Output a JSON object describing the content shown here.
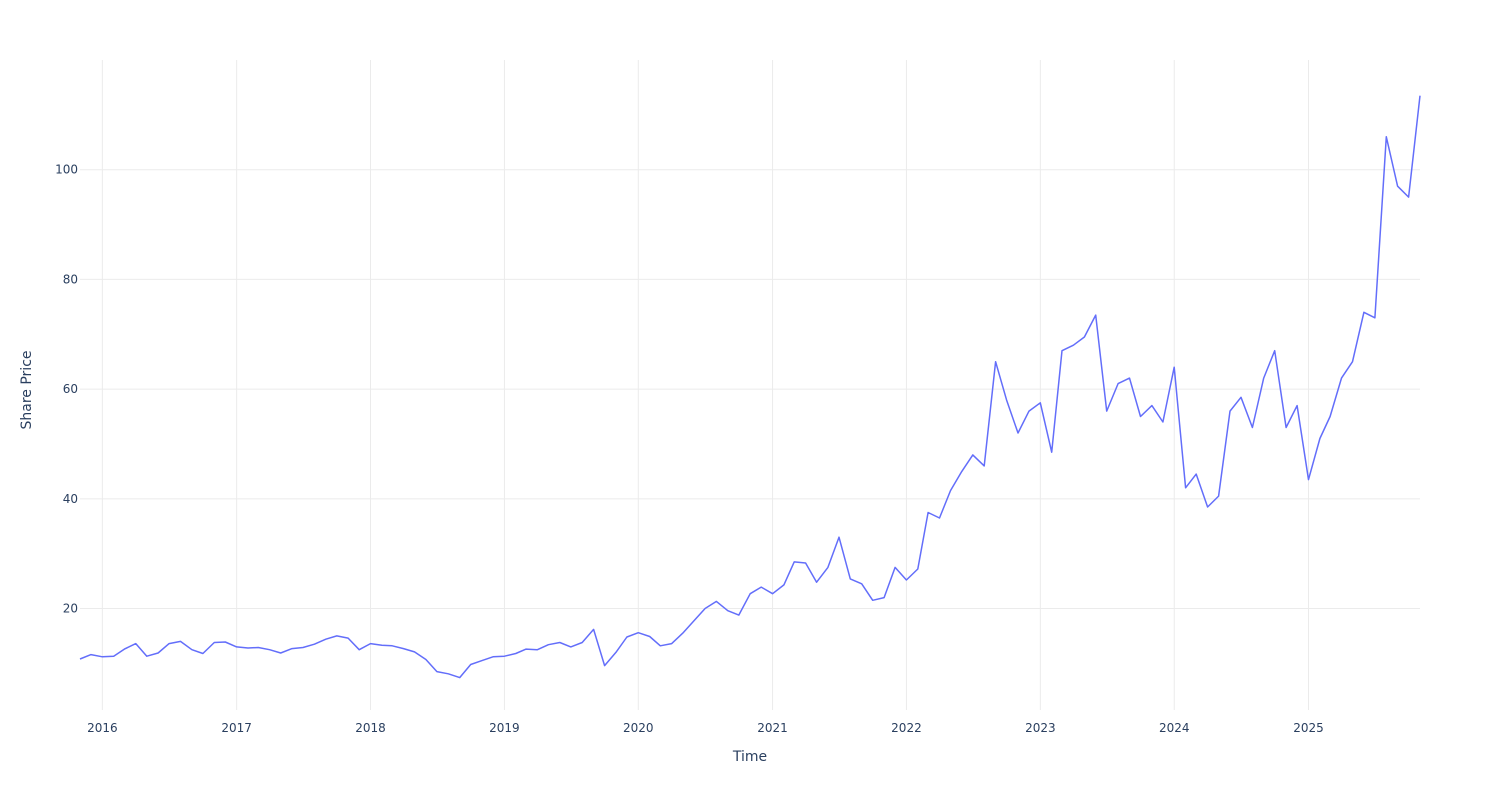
{
  "chart_data": {
    "type": "line",
    "title": "",
    "xlabel": "Time",
    "ylabel": "Share Price",
    "x_tick_labels": [
      "2016",
      "2017",
      "2018",
      "2019",
      "2020",
      "2021",
      "2022",
      "2023",
      "2024",
      "2025"
    ],
    "y_ticks": [
      20,
      40,
      60,
      80,
      100
    ],
    "xlim": [
      "2015-11-01",
      "2025-11-01"
    ],
    "ylim": [
      1.5,
      120
    ],
    "grid": true,
    "legend": "none",
    "series": [
      {
        "color": "#636efa",
        "x": [
          "2015-11-01",
          "2015-12-01",
          "2016-01-01",
          "2016-02-01",
          "2016-03-01",
          "2016-04-01",
          "2016-05-01",
          "2016-06-01",
          "2016-07-01",
          "2016-08-01",
          "2016-09-01",
          "2016-10-01",
          "2016-11-01",
          "2016-12-01",
          "2017-01-01",
          "2017-02-01",
          "2017-03-01",
          "2017-04-01",
          "2017-05-01",
          "2017-06-01",
          "2017-07-01",
          "2017-08-01",
          "2017-09-01",
          "2017-10-01",
          "2017-11-01",
          "2017-12-01",
          "2018-01-01",
          "2018-02-01",
          "2018-03-01",
          "2018-04-01",
          "2018-05-01",
          "2018-06-01",
          "2018-07-01",
          "2018-08-01",
          "2018-09-01",
          "2018-10-01",
          "2018-11-01",
          "2018-12-01",
          "2019-01-01",
          "2019-02-01",
          "2019-03-01",
          "2019-04-01",
          "2019-05-01",
          "2019-06-01",
          "2019-07-01",
          "2019-08-01",
          "2019-09-01",
          "2019-10-01",
          "2019-11-01",
          "2019-12-01",
          "2020-01-01",
          "2020-02-01",
          "2020-03-01",
          "2020-04-01",
          "2020-05-01",
          "2020-06-01",
          "2020-07-01",
          "2020-08-01",
          "2020-09-01",
          "2020-10-01",
          "2020-11-01",
          "2020-12-01",
          "2021-01-01",
          "2021-02-01",
          "2021-03-01",
          "2021-04-01",
          "2021-05-01",
          "2021-06-01",
          "2021-07-01",
          "2021-08-01",
          "2021-09-01",
          "2021-10-01",
          "2021-11-01",
          "2021-12-01",
          "2022-01-01",
          "2022-02-01",
          "2022-03-01",
          "2022-04-01",
          "2022-05-01",
          "2022-06-01",
          "2022-07-01",
          "2022-08-01",
          "2022-09-01",
          "2022-10-01",
          "2022-11-01",
          "2022-12-01",
          "2023-01-01",
          "2023-02-01",
          "2023-03-01",
          "2023-04-01",
          "2023-05-01",
          "2023-06-01",
          "2023-07-01",
          "2023-08-01",
          "2023-09-01",
          "2023-10-01",
          "2023-11-01",
          "2023-12-01",
          "2024-01-01",
          "2024-02-01",
          "2024-03-01",
          "2024-04-01",
          "2024-05-01",
          "2024-06-01",
          "2024-07-01",
          "2024-08-01",
          "2024-09-01",
          "2024-10-01",
          "2024-11-01",
          "2024-12-01",
          "2025-01-01",
          "2025-02-01",
          "2025-03-01",
          "2025-04-01",
          "2025-05-01",
          "2025-06-01",
          "2025-07-01",
          "2025-08-01",
          "2025-09-01",
          "2025-10-01",
          "2025-11-01"
        ],
        "y": [
          10.8,
          11.6,
          11.2,
          11.3,
          12.6,
          13.6,
          11.3,
          11.9,
          13.6,
          14.0,
          12.5,
          11.8,
          13.8,
          13.9,
          13.0,
          12.8,
          12.9,
          12.5,
          11.9,
          12.7,
          12.9,
          13.5,
          14.4,
          15.0,
          14.6,
          12.5,
          13.6,
          13.3,
          13.2,
          12.7,
          12.1,
          10.7,
          8.5,
          8.1,
          7.4,
          9.8,
          10.5,
          11.2,
          11.3,
          11.8,
          12.6,
          12.5,
          13.4,
          13.8,
          13.0,
          13.8,
          16.2,
          9.6,
          12.0,
          14.8,
          15.6,
          14.9,
          13.2,
          13.6,
          15.5,
          17.8,
          20.0,
          21.3,
          19.6,
          18.8,
          22.7,
          23.9,
          22.7,
          24.3,
          28.5,
          28.3,
          24.8,
          27.5,
          33.0,
          25.4,
          24.5,
          21.5,
          22.0,
          27.5,
          25.2,
          27.2,
          37.5,
          36.5,
          41.5,
          45.0,
          48.0,
          46.0,
          65.0,
          58.0,
          52.0,
          56.0,
          57.5,
          48.5,
          67.0,
          68.0,
          69.5,
          73.5,
          56.0,
          61.0,
          62.0,
          55.0,
          57.0,
          54.0,
          64.0,
          42.0,
          44.5,
          38.5,
          40.5,
          56.0,
          58.5,
          53.0,
          62.0,
          67.0,
          53.0,
          57.0,
          43.5,
          51.0,
          55.0,
          62.0,
          65.0,
          74.0,
          73.0,
          106.0,
          97.0,
          95.0,
          113.5
        ]
      }
    ]
  }
}
